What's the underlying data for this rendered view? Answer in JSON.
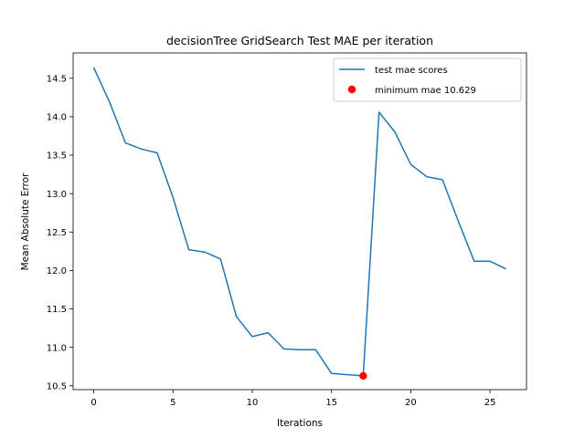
{
  "chart_data": {
    "type": "line",
    "title": "decisionTree GridSearch Test MAE per iteration",
    "xlabel": "Iterations",
    "ylabel": "Mean Absolute Error",
    "xlim": [
      -1.3,
      27.3
    ],
    "ylim": [
      10.45,
      14.83
    ],
    "xticks": [
      0,
      5,
      10,
      15,
      20,
      25
    ],
    "yticks": [
      10.5,
      11.0,
      11.5,
      12.0,
      12.5,
      13.0,
      13.5,
      14.0,
      14.5
    ],
    "ytick_labels": [
      "10.5",
      "11.0",
      "11.5",
      "12.0",
      "12.5",
      "13.0",
      "13.5",
      "14.0",
      "14.5"
    ],
    "legend_position": "top-right",
    "grid": false,
    "series": [
      {
        "name": "test mae scores",
        "kind": "line",
        "color": "#1f77b4",
        "x": [
          0,
          1,
          2,
          3,
          4,
          5,
          6,
          7,
          8,
          9,
          10,
          11,
          12,
          13,
          14,
          15,
          16,
          17,
          18,
          19,
          20,
          21,
          22,
          23,
          24,
          25,
          26
        ],
        "values": [
          14.64,
          14.19,
          13.66,
          13.58,
          13.53,
          12.95,
          12.27,
          12.24,
          12.15,
          11.4,
          11.14,
          11.19,
          10.98,
          10.97,
          10.97,
          10.66,
          10.645,
          10.629,
          14.06,
          13.8,
          13.38,
          13.22,
          13.18,
          12.64,
          12.12,
          12.12,
          12.02
        ]
      },
      {
        "name": "minimum mae 10.629",
        "kind": "scatter",
        "color": "#ff0000",
        "x": [
          17
        ],
        "values": [
          10.629
        ]
      }
    ]
  }
}
